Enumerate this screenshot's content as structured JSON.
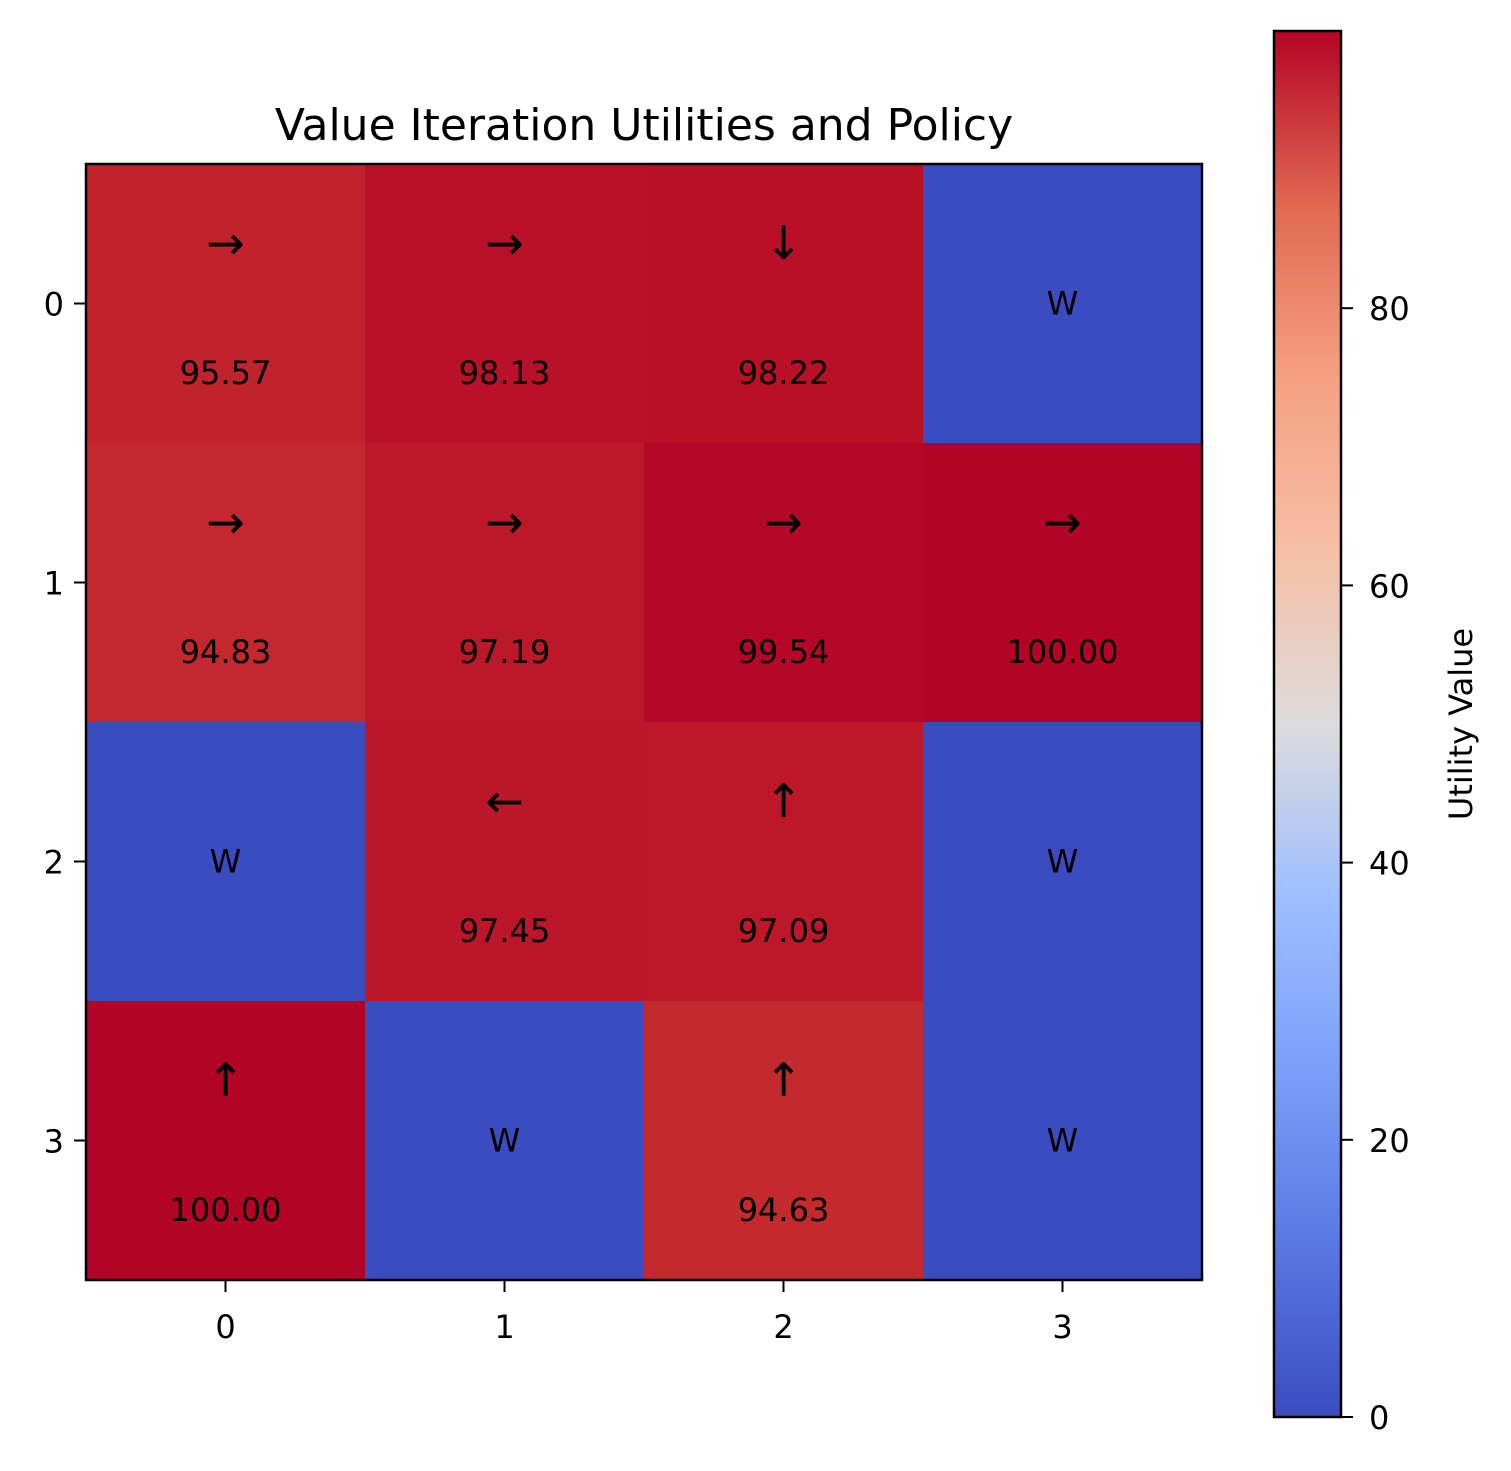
{
  "chart_data": {
    "type": "heatmap",
    "title": "Value Iteration Utilities and Policy",
    "xlabel": "",
    "ylabel": "",
    "x_ticks": [
      "0",
      "1",
      "2",
      "3"
    ],
    "y_ticks": [
      "0",
      "1",
      "2",
      "3"
    ],
    "colormap": "coolwarm",
    "color_range": [
      0,
      100
    ],
    "grid": false,
    "cells": [
      [
        {
          "value": 95.57,
          "label": "95.57",
          "arrow": "→"
        },
        {
          "value": 98.13,
          "label": "98.13",
          "arrow": "→"
        },
        {
          "value": 98.22,
          "label": "98.22",
          "arrow": "↓"
        },
        {
          "value": 0,
          "label": "W",
          "arrow": ""
        }
      ],
      [
        {
          "value": 94.83,
          "label": "94.83",
          "arrow": "→"
        },
        {
          "value": 97.19,
          "label": "97.19",
          "arrow": "→"
        },
        {
          "value": 99.54,
          "label": "99.54",
          "arrow": "→"
        },
        {
          "value": 100.0,
          "label": "100.00",
          "arrow": "→"
        }
      ],
      [
        {
          "value": 0,
          "label": "W",
          "arrow": ""
        },
        {
          "value": 97.45,
          "label": "97.45",
          "arrow": "←"
        },
        {
          "value": 97.09,
          "label": "97.09",
          "arrow": "↑"
        },
        {
          "value": 0,
          "label": "W",
          "arrow": ""
        }
      ],
      [
        {
          "value": 100.0,
          "label": "100.00",
          "arrow": "↑"
        },
        {
          "value": 0,
          "label": "W",
          "arrow": ""
        },
        {
          "value": 94.63,
          "label": "94.63",
          "arrow": "↑"
        },
        {
          "value": 0,
          "label": "W",
          "arrow": ""
        }
      ]
    ],
    "colorbar": {
      "label": "Utility Value",
      "ticks": [
        0,
        20,
        40,
        60,
        80
      ],
      "tick_labels": [
        "0",
        "20",
        "40",
        "60",
        "80"
      ],
      "position": "right"
    }
  }
}
